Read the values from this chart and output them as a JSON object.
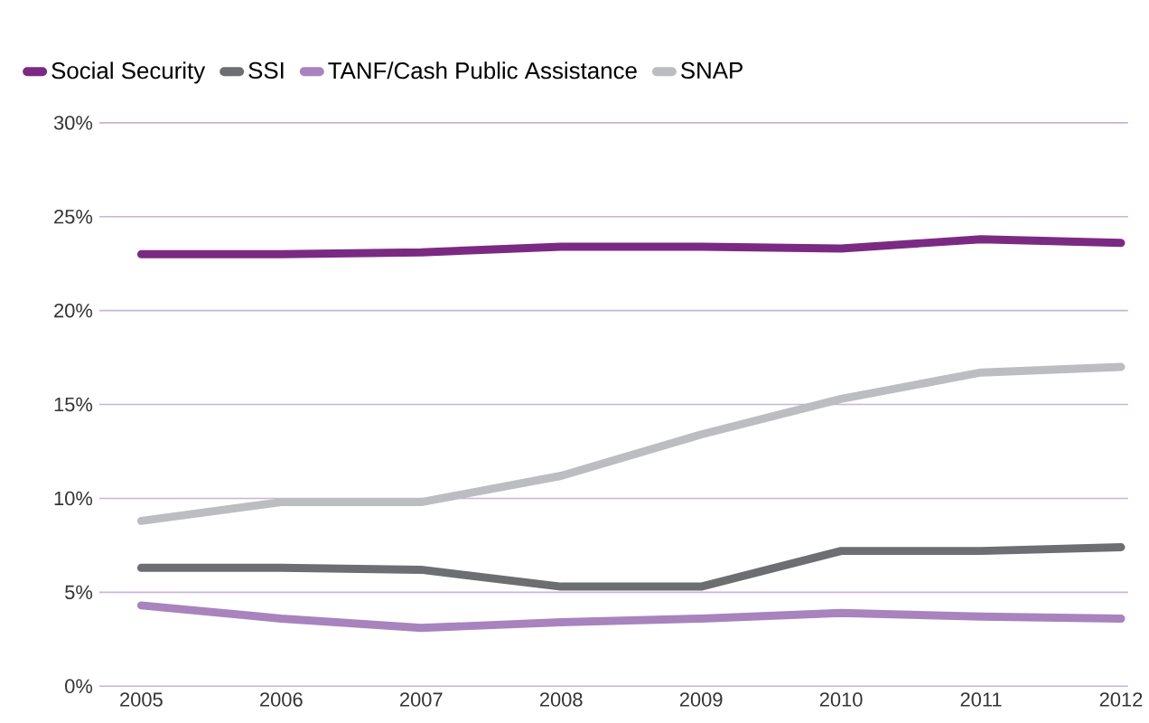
{
  "chart_data": {
    "type": "line",
    "categories": [
      "2005",
      "2006",
      "2007",
      "2008",
      "2009",
      "2010",
      "2011",
      "2012"
    ],
    "series": [
      {
        "name": "Social Security",
        "color": "#7b2a83",
        "values": [
          23.0,
          23.0,
          23.1,
          23.4,
          23.4,
          23.3,
          23.8,
          23.6
        ]
      },
      {
        "name": "SSI",
        "color": "#6d6e71",
        "values": [
          6.3,
          6.3,
          6.2,
          5.3,
          5.3,
          7.2,
          7.2,
          7.4
        ]
      },
      {
        "name": "TANF/Cash Public Assistance",
        "color": "#a883bd",
        "values": [
          4.3,
          3.6,
          3.1,
          3.4,
          3.6,
          3.9,
          3.7,
          3.6
        ]
      },
      {
        "name": "SNAP",
        "color": "#bcbdc0",
        "values": [
          8.8,
          9.8,
          9.8,
          11.2,
          13.4,
          15.3,
          16.7,
          17.0
        ]
      }
    ],
    "ylim": [
      0,
      30
    ],
    "yticks": [
      {
        "value": 0,
        "label": "0%"
      },
      {
        "value": 5,
        "label": "5%"
      },
      {
        "value": 10,
        "label": "10%"
      },
      {
        "value": 15,
        "label": "15%"
      },
      {
        "value": 20,
        "label": "20%"
      },
      {
        "value": 25,
        "label": "25%"
      },
      {
        "value": 30,
        "label": "30%"
      }
    ],
    "grid": "y",
    "legend": "top left",
    "marker": "none",
    "line_style": "solid"
  }
}
